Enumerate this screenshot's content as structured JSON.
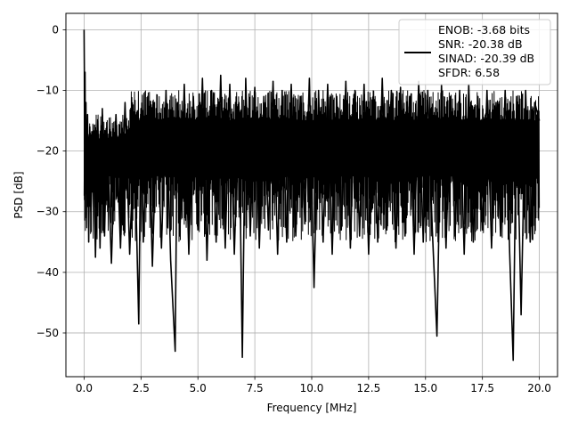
{
  "chart_data": {
    "type": "line",
    "xlabel": "Frequency [MHz]",
    "ylabel": "PSD [dB]",
    "xlim": [
      -0.8,
      20.8
    ],
    "ylim": [
      -57.2,
      2.7
    ],
    "xticks": [
      0.0,
      2.5,
      5.0,
      7.5,
      10.0,
      12.5,
      15.0,
      17.5,
      20.0
    ],
    "xtick_labels": [
      "0.0",
      "2.5",
      "5.0",
      "7.5",
      "10.0",
      "12.5",
      "15.0",
      "17.5",
      "20.0"
    ],
    "yticks": [
      0,
      -10,
      -20,
      -30,
      -40,
      -50
    ],
    "ytick_labels": [
      "0",
      "−10",
      "−20",
      "−30",
      "−40",
      "−50"
    ],
    "grid": true,
    "series_color": "#000000",
    "legend": {
      "placement": "top-right",
      "lines": [
        "ENOB: -3.68 bits",
        "SNR: -20.38 dB",
        "SINAD: -20.39 dB",
        "SFDR: 6.58"
      ]
    },
    "series": [
      {
        "x": [
          0.0,
          0.01,
          0.02,
          0.04,
          0.06,
          0.08,
          0.1,
          0.15,
          0.2,
          0.25,
          0.3,
          0.4,
          0.5,
          0.6,
          0.7,
          0.8,
          0.9,
          1.0,
          1.2,
          1.4,
          1.6,
          1.8,
          2.0,
          2.2,
          2.4,
          2.5,
          2.6,
          2.8,
          3.0,
          3.2,
          3.4,
          3.6,
          3.8,
          4.0,
          4.1,
          4.2,
          4.4,
          4.6,
          4.8,
          5.0,
          5.2,
          5.4,
          5.6,
          5.8,
          6.0,
          6.2,
          6.4,
          6.6,
          6.8,
          6.95,
          7.1,
          7.3,
          7.5,
          7.7,
          7.9,
          8.1,
          8.3,
          8.5,
          8.7,
          8.9,
          9.1,
          9.3,
          9.5,
          9.7,
          9.9,
          10.1,
          10.3,
          10.5,
          10.7,
          10.9,
          11.1,
          11.3,
          11.5,
          11.7,
          11.9,
          12.1,
          12.3,
          12.5,
          12.7,
          12.9,
          13.1,
          13.3,
          13.5,
          13.7,
          13.9,
          14.1,
          14.3,
          14.5,
          14.7,
          14.9,
          15.1,
          15.3,
          15.5,
          15.7,
          15.9,
          16.1,
          16.3,
          16.5,
          16.7,
          16.9,
          17.1,
          17.3,
          17.5,
          17.7,
          17.9,
          18.1,
          18.3,
          18.5,
          18.7,
          18.85,
          19.0,
          19.2,
          19.4,
          19.6,
          19.8,
          20.0
        ],
        "y": [
          0.0,
          -6.5,
          -28.0,
          -7.0,
          -31.0,
          -12.0,
          -27.0,
          -14.0,
          -35.0,
          -16.0,
          -30.0,
          -18.0,
          -37.5,
          -15.0,
          -36.0,
          -13.0,
          -34.0,
          -16.0,
          -38.5,
          -14.0,
          -36.0,
          -12.0,
          -37.0,
          -16.0,
          -48.5,
          -13.0,
          -35.0,
          -11.0,
          -39.0,
          -14.0,
          -36.0,
          -10.0,
          -38.0,
          -53.0,
          -12.0,
          -34.0,
          -9.0,
          -37.0,
          -11.0,
          -33.0,
          -8.0,
          -38.0,
          -10.0,
          -35.0,
          -7.5,
          -36.0,
          -9.0,
          -37.0,
          -12.0,
          -54.0,
          -8.0,
          -34.0,
          -9.5,
          -36.0,
          -11.0,
          -33.0,
          -8.5,
          -37.0,
          -10.0,
          -35.0,
          -9.0,
          -34.0,
          -11.0,
          -32.0,
          -8.0,
          -42.5,
          -10.0,
          -35.0,
          -9.0,
          -37.0,
          -11.0,
          -33.0,
          -8.5,
          -36.0,
          -10.0,
          -34.0,
          -9.0,
          -37.0,
          -11.0,
          -35.0,
          -8.0,
          -33.0,
          -10.0,
          -36.0,
          -9.5,
          -34.0,
          -11.0,
          -37.0,
          -8.5,
          -35.0,
          -10.0,
          -33.0,
          -50.5,
          -9.0,
          -36.0,
          -11.0,
          -34.0,
          -10.0,
          -37.0,
          -9.0,
          -35.0,
          -11.0,
          -33.0,
          -10.0,
          -36.0,
          -12.0,
          -34.0,
          -10.0,
          -37.0,
          -54.5,
          -11.0,
          -47.0,
          -10.0,
          -35.0,
          -12.0,
          -15.0
        ]
      }
    ]
  }
}
